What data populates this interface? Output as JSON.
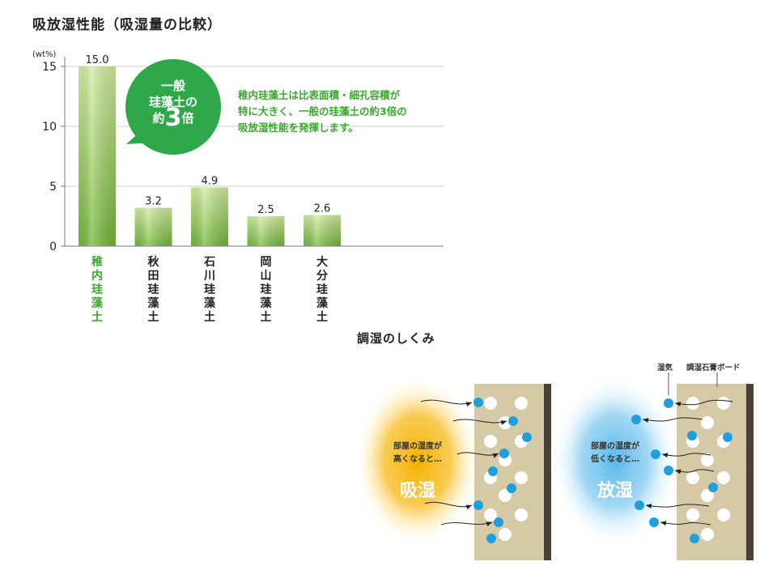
{
  "header": {
    "title": "吸放湿性能（吸湿量の比較）"
  },
  "chart_data": {
    "type": "bar",
    "unit_label": "(wt%)",
    "categories": [
      "稚内珪藻土",
      "秋田珪藻土",
      "石川珪藻土",
      "岡山珪藻土",
      "大分珪藻土"
    ],
    "values": [
      15.0,
      3.2,
      4.9,
      2.5,
      2.6
    ],
    "value_labels": [
      "15.0",
      "3.2",
      "4.9",
      "2.5",
      "2.6"
    ],
    "y_ticks": [
      0,
      5,
      10,
      15
    ],
    "ylim": [
      0,
      15
    ],
    "grid": true,
    "highlight_index": 0,
    "colors": {
      "bar_top": "#d4eca2",
      "bar_bottom": "#73b83a",
      "highlight_text": "#3aa72e",
      "text": "#222222"
    }
  },
  "callout": {
    "line1": "一般",
    "line2": "珪藻土の",
    "line3_prefix": "約",
    "line3_big": "3",
    "line3_suffix": "倍",
    "color": "#2ea84a"
  },
  "note": {
    "line1": "稚内珪藻土は比表面積・細孔容積が",
    "line2": "特に大きく、一般の珪藻土の約3倍の",
    "line3": "吸放湿性能を発揮します。"
  },
  "mechanism": {
    "title": "調湿のしくみ",
    "absorb": {
      "condition_line1": "部屋の湿度が",
      "condition_line2": "高くなると…",
      "label": "吸湿",
      "color": "#f4b200"
    },
    "release": {
      "condition_line1": "部屋の湿度が",
      "condition_line2": "低くなると…",
      "label": "放湿",
      "color": "#59b8ea"
    },
    "legend": {
      "moisture": "湿気",
      "board": "調湿石膏ボード"
    }
  }
}
